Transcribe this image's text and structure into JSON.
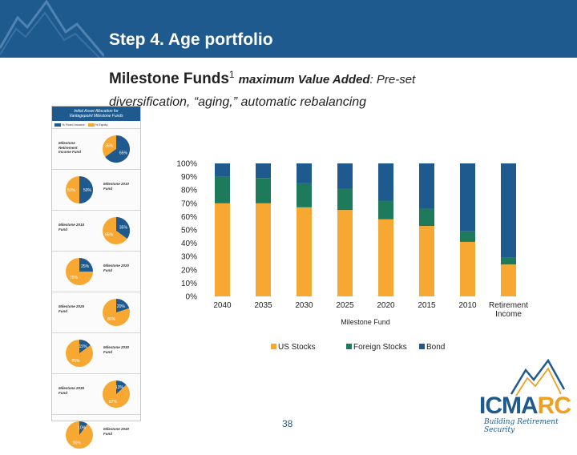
{
  "slide": {
    "title": "Step 4. Age portfolio",
    "subtitle_funds": "Milestone Funds",
    "subtitle_sup": "1",
    "subtitle_value_added": "maximum Value Added",
    "subtitle_rest": ": Pre-set",
    "subtitle_line2": "diversification, “aging,” automatic rebalancing",
    "page_number": "38"
  },
  "logo": {
    "icma": "ICMA",
    "rc": "RC",
    "tagline": "Building Retirement Security"
  },
  "sidebar": {
    "title_line1": "Initial Asset Allocation for",
    "title_line2": "Vantagepoint Milestone Funds",
    "legend": [
      "% Fixed Income",
      "% Equity"
    ],
    "items": [
      {
        "label": "Milestone Retirement Income Fund",
        "fixed": 65,
        "equity": 35
      },
      {
        "label": "Milestone 2010 Fund",
        "fixed": 50,
        "equity": 50
      },
      {
        "label": "Milestone 2015 Fund",
        "fixed": 35,
        "equity": 65
      },
      {
        "label": "Milestone 2020 Fund",
        "fixed": 25,
        "equity": 75
      },
      {
        "label": "Milestone 2025 Fund",
        "fixed": 20,
        "equity": 80
      },
      {
        "label": "Milestone 2030 Fund",
        "fixed": 15,
        "equity": 85
      },
      {
        "label": "Milestone 2035 Fund",
        "fixed": 13,
        "equity": 87
      },
      {
        "label": "Milestone 2040 Fund",
        "fixed": 10,
        "equity": 90
      }
    ],
    "colors": {
      "fixed": "#1f5a8e",
      "equity": "#f7a833"
    }
  },
  "chart_data": {
    "type": "bar",
    "stacked": true,
    "categories": [
      "2040",
      "2035",
      "2030",
      "2025",
      "2020",
      "2015",
      "2010",
      "Retirement Income"
    ],
    "series": [
      {
        "name": "US Stocks",
        "color": "#f7a833",
        "values": [
          70,
          70,
          67,
          65,
          58,
          53,
          41,
          24
        ]
      },
      {
        "name": "Foreign Stocks",
        "color": "#1d7a5a",
        "values": [
          20,
          19,
          18,
          16,
          14,
          13,
          8,
          5
        ]
      },
      {
        "name": "Bond",
        "color": "#1f5a8e",
        "values": [
          10,
          11,
          15,
          19,
          28,
          34,
          51,
          71
        ]
      }
    ],
    "xlabel": "Milestone Fund",
    "ylabel": "",
    "ylim": [
      0,
      100
    ],
    "yticks": [
      "0%",
      "10%",
      "20%",
      "30%",
      "40%",
      "50%",
      "60%",
      "70%",
      "80%",
      "90%",
      "100%"
    ],
    "legend_position": "bottom"
  }
}
